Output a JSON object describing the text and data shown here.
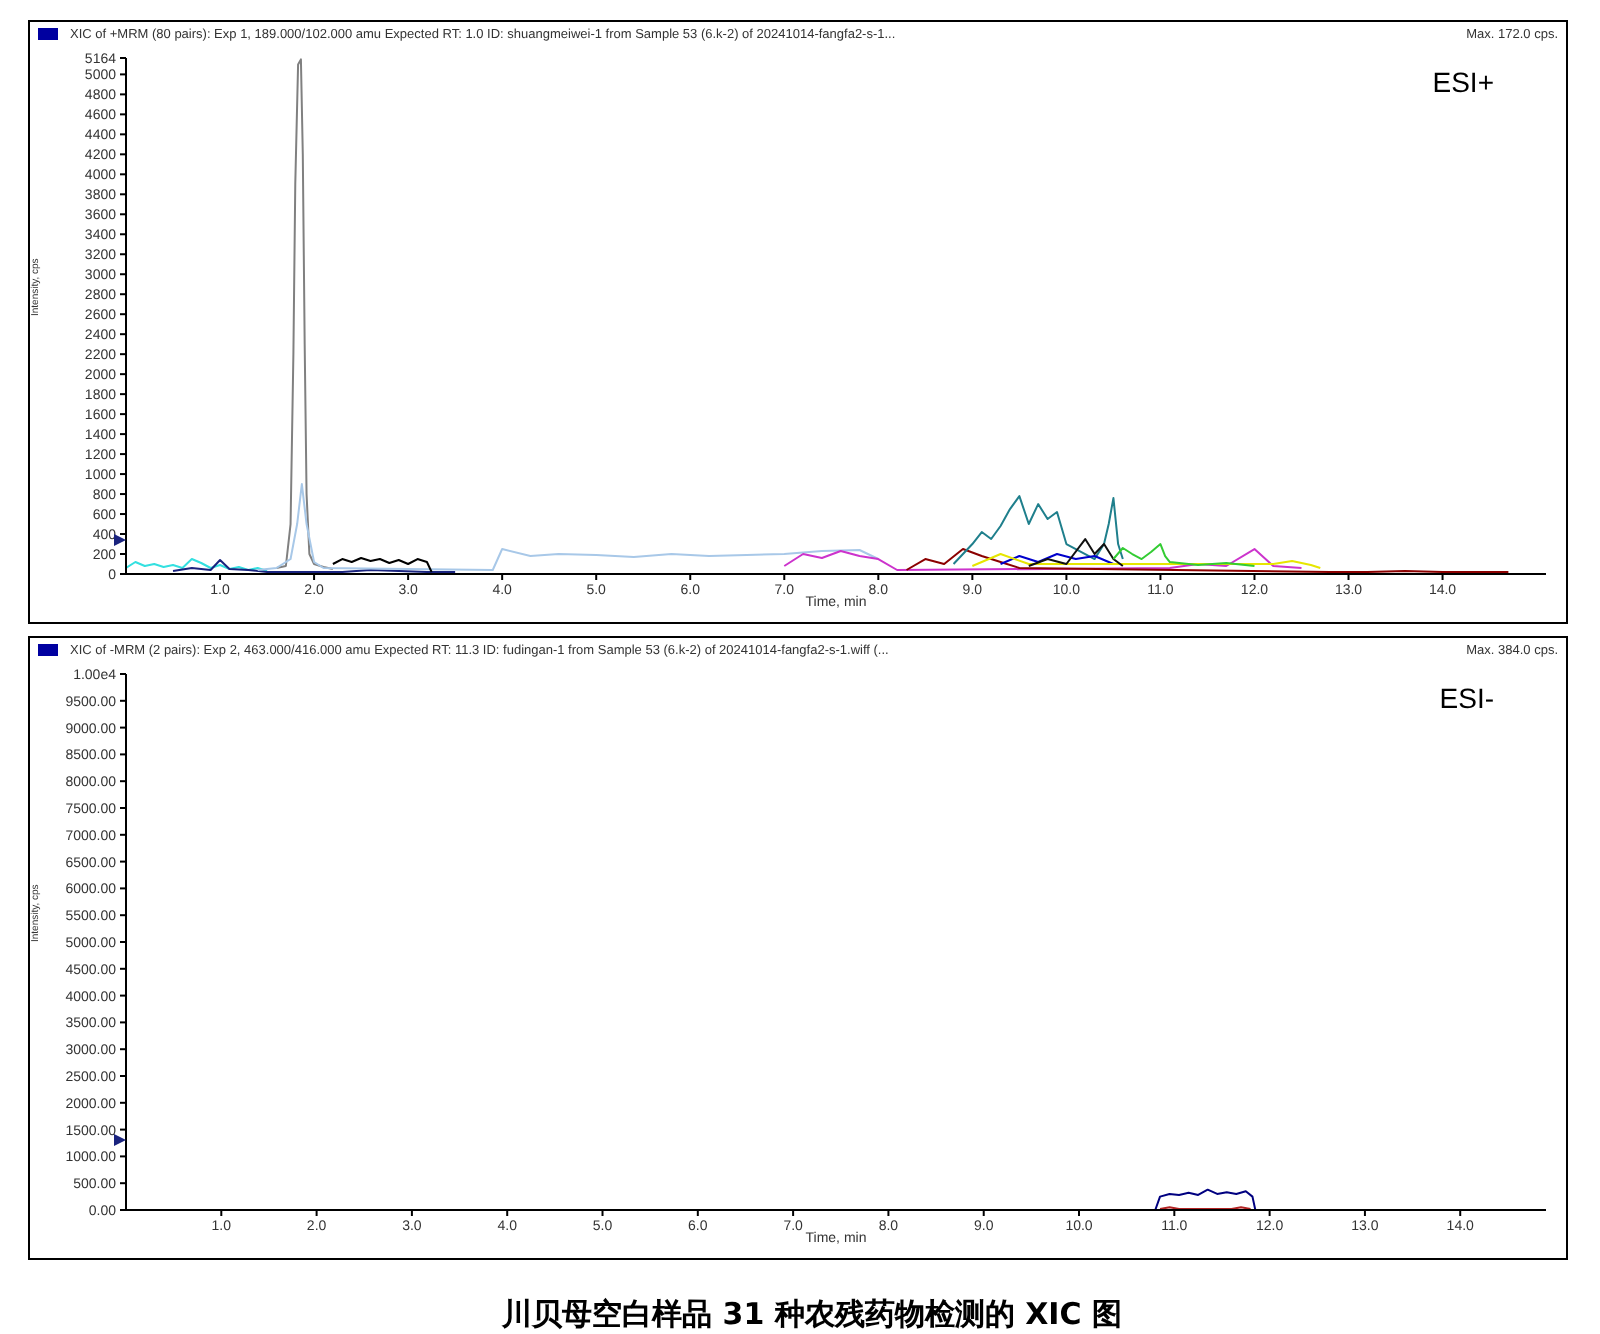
{
  "chart_data": [
    {
      "type": "line",
      "title": "XIC of +MRM (80 pairs): Exp 1, 189.000/102.000 amu Expected RT: 1.0 ID: shuangmeiwei-1 from Sample 53 (6.k-2) of 20241014-fangfa2-s-1...",
      "xlabel": "Time, min",
      "ylabel": "Intensity, cps",
      "annotations": [
        "Max. 172.0 cps.",
        "ESI+"
      ],
      "xlim": [
        0,
        15.1
      ],
      "xticks": [
        {
          "value": 1,
          "label": "1.0"
        },
        {
          "value": 2,
          "label": "2.0"
        },
        {
          "value": 3,
          "label": "3.0"
        },
        {
          "value": 4,
          "label": "4.0"
        },
        {
          "value": 5,
          "label": "5.0"
        },
        {
          "value": 6,
          "label": "6.0"
        },
        {
          "value": 7,
          "label": "7.0"
        },
        {
          "value": 8,
          "label": "8.0"
        },
        {
          "value": 9,
          "label": "9.0"
        },
        {
          "value": 10,
          "label": "10.0"
        },
        {
          "value": 11,
          "label": "11.0"
        },
        {
          "value": 12,
          "label": "12.0"
        },
        {
          "value": 13,
          "label": "13.0"
        },
        {
          "value": 14,
          "label": "14.0"
        }
      ],
      "ylim": [
        0,
        5164
      ],
      "yticks": [
        0,
        200,
        400,
        600,
        800,
        1000,
        1200,
        1400,
        1600,
        1800,
        2000,
        2200,
        2400,
        2600,
        2800,
        3000,
        3200,
        3400,
        3600,
        3800,
        4000,
        4200,
        4400,
        4600,
        4800,
        5000,
        5164
      ],
      "series": [
        {
          "color": "#33e0e0",
          "x": [
            0.0,
            0.1,
            0.2,
            0.3,
            0.4,
            0.5,
            0.6,
            0.7,
            0.8,
            0.9,
            1.0,
            1.1,
            1.2,
            1.3,
            1.4,
            1.5
          ],
          "values": [
            60,
            120,
            80,
            100,
            70,
            90,
            60,
            150,
            110,
            60,
            90,
            50,
            70,
            40,
            60,
            30
          ]
        },
        {
          "color": "#1a237e",
          "x": [
            0.5,
            0.7,
            0.9,
            1.0,
            1.1,
            1.3,
            1.5,
            2.3,
            2.6,
            2.9,
            3.2,
            3.5
          ],
          "values": [
            30,
            60,
            40,
            140,
            50,
            40,
            20,
            20,
            40,
            30,
            20,
            20
          ]
        },
        {
          "color": "#808080",
          "x": [
            1.6,
            1.7,
            1.75,
            1.78,
            1.8,
            1.83,
            1.86,
            1.88,
            1.9,
            1.92,
            1.95,
            2.0,
            2.1,
            2.2
          ],
          "values": [
            60,
            80,
            500,
            2200,
            3900,
            5100,
            5150,
            4200,
            2300,
            800,
            200,
            100,
            70,
            50
          ]
        },
        {
          "color": "#a8c8e8",
          "x": [
            1.4,
            1.6,
            1.75,
            1.82,
            1.87,
            1.92,
            2.0,
            2.1,
            3.9,
            4.0,
            4.3,
            4.6,
            5.0,
            5.4,
            5.8,
            6.2,
            6.6,
            7.0,
            7.4,
            7.8,
            8.0
          ],
          "values": [
            40,
            60,
            150,
            500,
            900,
            500,
            120,
            60,
            40,
            250,
            180,
            200,
            190,
            170,
            200,
            180,
            190,
            200,
            230,
            240,
            150
          ]
        },
        {
          "color": "#000000",
          "x": [
            2.2,
            2.3,
            2.4,
            2.5,
            2.6,
            2.7,
            2.8,
            2.9,
            3.0,
            3.1,
            3.2,
            3.25
          ],
          "values": [
            100,
            150,
            120,
            160,
            130,
            150,
            110,
            140,
            100,
            150,
            120,
            20
          ]
        },
        {
          "color": "#cc33cc",
          "x": [
            7.0,
            7.2,
            7.4,
            7.6,
            7.8,
            8.0,
            8.2,
            11.1,
            11.4,
            11.7,
            12.0,
            12.2,
            12.5
          ],
          "values": [
            80,
            200,
            160,
            230,
            180,
            150,
            40,
            60,
            100,
            80,
            250,
            80,
            60
          ]
        },
        {
          "color": "#8b0000",
          "x": [
            8.3,
            8.5,
            8.7,
            8.9,
            9.1,
            9.3,
            9.5,
            12.8,
            13.2,
            13.6,
            14.0,
            14.4,
            14.7
          ],
          "values": [
            40,
            150,
            100,
            250,
            180,
            120,
            60,
            20,
            20,
            30,
            20,
            20,
            20
          ]
        },
        {
          "color": "#1f7f8c",
          "x": [
            8.8,
            9.0,
            9.1,
            9.2,
            9.3,
            9.4,
            9.5,
            9.6,
            9.7,
            9.8,
            9.9,
            10.0,
            10.1,
            10.2,
            10.3,
            10.4,
            10.45,
            10.5,
            10.55,
            10.6
          ],
          "values": [
            100,
            300,
            420,
            350,
            480,
            650,
            780,
            500,
            700,
            550,
            620,
            300,
            250,
            200,
            150,
            300,
            500,
            760,
            300,
            150
          ]
        },
        {
          "color": "#0000cc",
          "x": [
            9.3,
            9.5,
            9.7,
            9.9,
            10.1,
            10.3,
            10.5
          ],
          "values": [
            100,
            180,
            120,
            200,
            150,
            180,
            100
          ]
        },
        {
          "color": "#e6e600",
          "x": [
            9.0,
            9.3,
            9.6,
            12.2,
            12.4,
            12.6,
            12.7
          ],
          "values": [
            80,
            200,
            100,
            100,
            130,
            90,
            60
          ]
        },
        {
          "color": "#111111",
          "x": [
            9.6,
            9.8,
            10.0,
            10.2,
            10.3,
            10.4,
            10.5,
            10.6
          ],
          "values": [
            80,
            150,
            100,
            350,
            200,
            300,
            150,
            80
          ]
        },
        {
          "color": "#33cc33",
          "x": [
            10.5,
            10.6,
            10.7,
            10.8,
            10.9,
            11.0,
            11.05,
            11.1,
            11.4,
            11.7,
            12.0
          ],
          "values": [
            150,
            260,
            200,
            150,
            220,
            300,
            180,
            120,
            90,
            110,
            80
          ]
        }
      ]
    },
    {
      "type": "line",
      "title": "XIC of -MRM (2 pairs): Exp 2, 463.000/416.000 amu Expected RT: 11.3 ID: fudingan-1 from Sample 53 (6.k-2) of 20241014-fangfa2-s-1.wiff (...",
      "xlabel": "Time, min",
      "ylabel": "Intensity, cps",
      "annotations": [
        "Max. 384.0 cps.",
        "ESI-",
        "川贝母空白样品 31 种农残药物检测的 XIC 图"
      ],
      "xlim": [
        0,
        14.9
      ],
      "xticks": [
        {
          "value": 1,
          "label": "1.0"
        },
        {
          "value": 2,
          "label": "2.0"
        },
        {
          "value": 3,
          "label": "3.0"
        },
        {
          "value": 4,
          "label": "4.0"
        },
        {
          "value": 5,
          "label": "5.0"
        },
        {
          "value": 6,
          "label": "6.0"
        },
        {
          "value": 7,
          "label": "7.0"
        },
        {
          "value": 8,
          "label": "8.0"
        },
        {
          "value": 9,
          "label": "9.0"
        },
        {
          "value": 10,
          "label": "10.0"
        },
        {
          "value": 11,
          "label": "11.0"
        },
        {
          "value": 12,
          "label": "12.0"
        },
        {
          "value": 13,
          "label": "13.0"
        },
        {
          "value": 14,
          "label": "14.0"
        }
      ],
      "ylim": [
        0,
        10000
      ],
      "yticks": [
        {
          "value": 0,
          "label": "0.00"
        },
        {
          "value": 500,
          "label": "500.00"
        },
        {
          "value": 1000,
          "label": "1000.00"
        },
        {
          "value": 1500,
          "label": "1500.00"
        },
        {
          "value": 2000,
          "label": "2000.00"
        },
        {
          "value": 2500,
          "label": "2500.00"
        },
        {
          "value": 3000,
          "label": "3000.00"
        },
        {
          "value": 3500,
          "label": "3500.00"
        },
        {
          "value": 4000,
          "label": "4000.00"
        },
        {
          "value": 4500,
          "label": "4500.00"
        },
        {
          "value": 5000,
          "label": "5000.00"
        },
        {
          "value": 5500,
          "label": "5500.00"
        },
        {
          "value": 6000,
          "label": "6000.00"
        },
        {
          "value": 6500,
          "label": "6500.00"
        },
        {
          "value": 7000,
          "label": "7000.00"
        },
        {
          "value": 7500,
          "label": "7500.00"
        },
        {
          "value": 8000,
          "label": "8000.00"
        },
        {
          "value": 8500,
          "label": "8500.00"
        },
        {
          "value": 9000,
          "label": "9000.00"
        },
        {
          "value": 9500,
          "label": "9500.00"
        },
        {
          "value": 10000,
          "label": "1.00e4"
        }
      ],
      "series": [
        {
          "color": "#000080",
          "x": [
            10.8,
            10.85,
            10.95,
            11.05,
            11.15,
            11.25,
            11.35,
            11.45,
            11.55,
            11.65,
            11.75,
            11.82,
            11.85
          ],
          "values": [
            0,
            250,
            300,
            280,
            320,
            280,
            380,
            300,
            330,
            300,
            350,
            250,
            0
          ]
        },
        {
          "color": "#b22222",
          "x": [
            10.85,
            10.95,
            11.05,
            11.6,
            11.7,
            11.8
          ],
          "values": [
            20,
            50,
            20,
            20,
            50,
            20
          ]
        }
      ]
    }
  ]
}
